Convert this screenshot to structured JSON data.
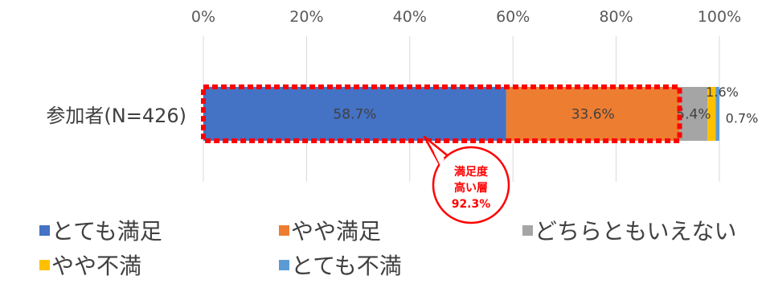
{
  "chart_data": {
    "type": "bar",
    "orientation": "horizontal",
    "stacked": true,
    "x_axis": {
      "min": 0,
      "max": 100,
      "unit": "%",
      "position": "top",
      "ticks": [
        "0%",
        "20%",
        "40%",
        "60%",
        "80%",
        "100%"
      ],
      "grid": true
    },
    "categories": [
      "参加者(N=426)"
    ],
    "series": [
      {
        "name": "とても満足",
        "values": [
          58.7
        ],
        "label": "58.7%",
        "color": "#4472C4"
      },
      {
        "name": "やや満足",
        "values": [
          33.6
        ],
        "label": "33.6%",
        "color": "#ED7D31"
      },
      {
        "name": "どちらともいえない",
        "values": [
          5.4
        ],
        "label": "5.4%",
        "color": "#A5A5A5"
      },
      {
        "name": "やや不満",
        "values": [
          1.6
        ],
        "label": "1.6%",
        "color": "#FFC000"
      },
      {
        "name": "とても不満",
        "values": [
          0.7
        ],
        "label": "0.7%",
        "color": "#5B9BD5"
      }
    ],
    "highlight": {
      "series_span": [
        "とても満足",
        "やや満足"
      ],
      "total": 92.3,
      "callout_lines": [
        "満足度",
        "高い層",
        "92.3%"
      ],
      "color": "#FF0000"
    },
    "legend": {
      "position": "bottom"
    }
  }
}
